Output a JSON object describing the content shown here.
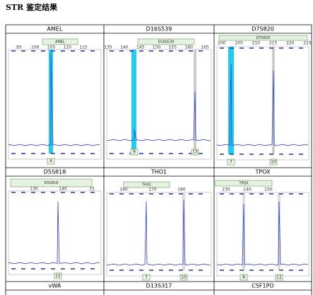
{
  "title": "STR 鉴定结果",
  "panels": [
    {
      "name": "AMEL",
      "box_label": "AMEL",
      "scale": [
        95,
        100,
        105,
        110,
        115
      ],
      "alleles": [
        "X"
      ]
    },
    {
      "name": "D16S539",
      "box_label": "D16S539",
      "scale": [
        135,
        140,
        145,
        150,
        155,
        160,
        165
      ],
      "alleles": [
        "9",
        "13"
      ]
    },
    {
      "name": "D7S820",
      "box_label": "D7S820",
      "scale": [
        200,
        205,
        210,
        215,
        220,
        225
      ],
      "alleles": [
        "7",
        "10"
      ]
    },
    {
      "name": "D5S818",
      "box_label": "D5S818",
      "scale": [
        130,
        140,
        15
      ],
      "alleles": [
        "12"
      ]
    },
    {
      "name": "THO1",
      "box_label": "TH01",
      "scale": [
        160,
        170,
        180
      ],
      "alleles": [
        "7",
        "10"
      ]
    },
    {
      "name": "TPOX",
      "box_label": "TPOX",
      "scale": [
        230,
        240,
        250
      ],
      "alleles": [
        "8",
        "11"
      ]
    }
  ],
  "bottom_names": [
    "vWA",
    "D13S317",
    "CSF1PO"
  ]
}
